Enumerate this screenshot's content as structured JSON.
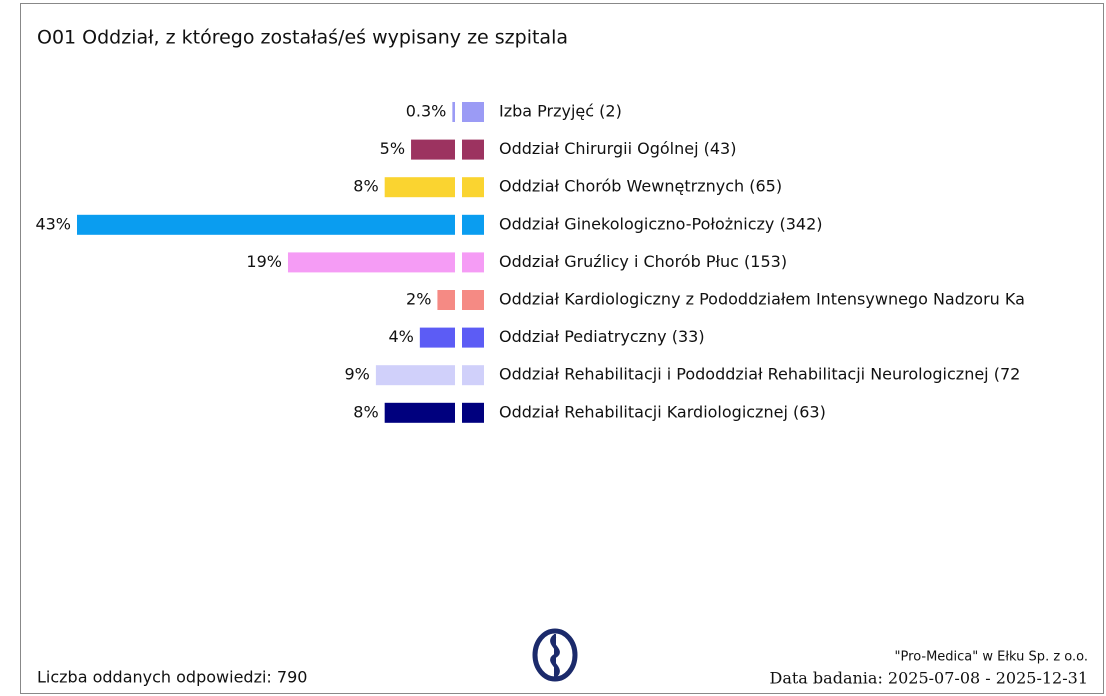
{
  "chart_data": {
    "type": "bar",
    "orientation": "horizontal",
    "title": "O01 Oddział, z którego zostałaś/eś wypisany ze szpitala",
    "categories": [
      "Izba Przyjęć (2)",
      "Oddział Chirurgii Ogólnej (43)",
      "Oddział Chorób Wewnętrznych (65)",
      "Oddział Ginekologiczno-Położniczy (342)",
      "Oddział Gruźlicy i Chorób Płuc (153)",
      "Oddział Kardiologiczny z Pododdziałem Intensywnego Nadzoru Ka",
      "Oddział Pediatryczny (33)",
      "Oddział Rehabilitacji i Pododdział Rehabilitacji Neurologicznej (72",
      "Oddział Rehabilitacji Kardiologicznej (63)"
    ],
    "values": [
      0.3,
      5,
      8,
      43,
      19,
      2,
      4,
      9,
      8
    ],
    "value_labels": [
      "0.3%",
      "5%",
      "8%",
      "43%",
      "19%",
      "2%",
      "4%",
      "9%",
      "8%"
    ],
    "colors": [
      "#9b9bf5",
      "#9c3360",
      "#fad430",
      "#0a9df0",
      "#f59cf5",
      "#f58a84",
      "#5c5cf5",
      "#d0d0fa",
      "#00007e"
    ]
  },
  "footer": {
    "responses": "Liczba oddanych odpowiedzi: 790",
    "organization": "\"Pro-Medica\" w Ełku Sp. z o.o.",
    "date": "Data badania: 2025-07-08 - 2025-12-31"
  }
}
